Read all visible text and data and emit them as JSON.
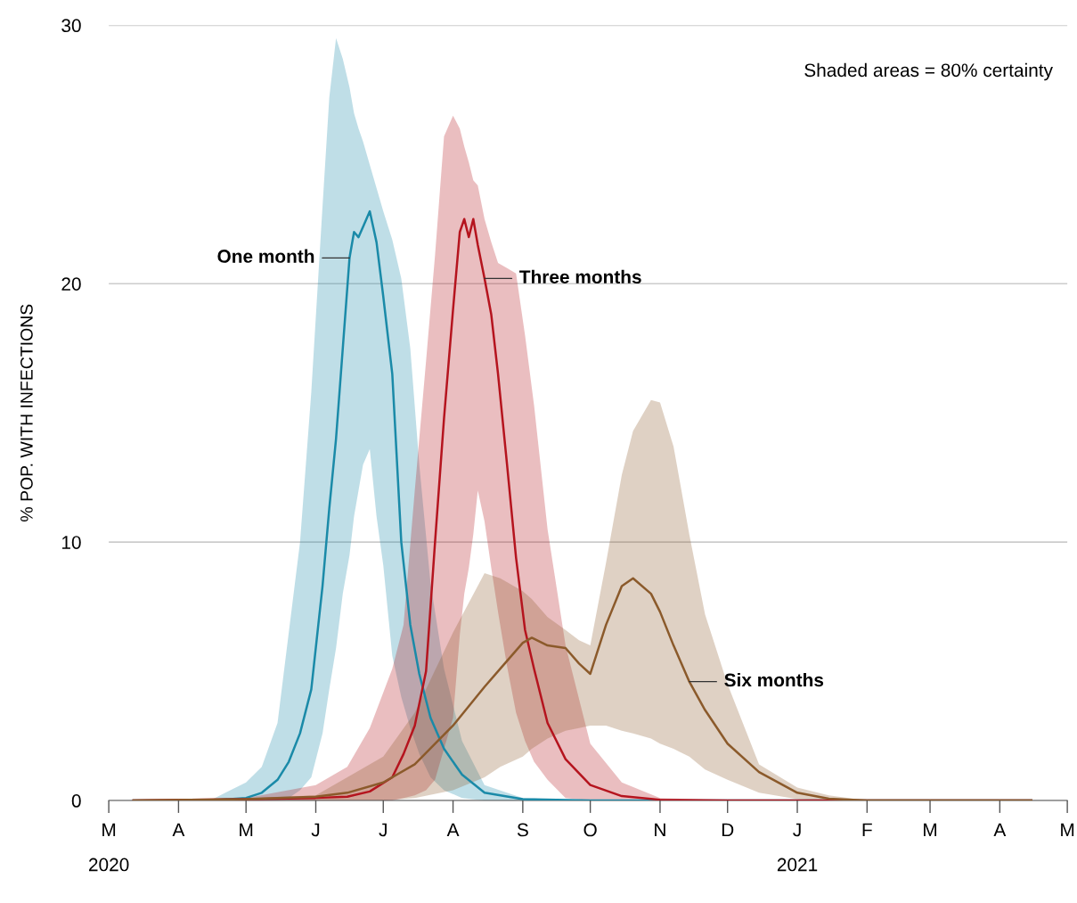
{
  "chart_data": {
    "type": "line",
    "ylabel": "% POP. WITH INFECTIONS",
    "annotations": [
      "Shaded areas = 80% certainty"
    ],
    "xlim": [
      "2020-03-01",
      "2021-05-01"
    ],
    "xticks": [
      {
        "value": "2020-03-01",
        "label": "M\n2020"
      },
      {
        "value": "2020-04-01",
        "label": "A"
      },
      {
        "value": "2020-05-01",
        "label": "M"
      },
      {
        "value": "2020-06-01",
        "label": "J"
      },
      {
        "value": "2020-07-01",
        "label": "J"
      },
      {
        "value": "2020-08-01",
        "label": "A"
      },
      {
        "value": "2020-09-01",
        "label": "S"
      },
      {
        "value": "2020-10-01",
        "label": "O"
      },
      {
        "value": "2020-11-01",
        "label": "N"
      },
      {
        "value": "2020-12-01",
        "label": "D"
      },
      {
        "value": "2021-01-01",
        "label": "J\n2021"
      },
      {
        "value": "2021-02-01",
        "label": "F"
      },
      {
        "value": "2021-03-01",
        "label": "M"
      },
      {
        "value": "2021-04-01",
        "label": "A"
      },
      {
        "value": "2021-05-01",
        "label": "M"
      }
    ],
    "ylim": [
      0,
      30
    ],
    "yticks": [
      0,
      10,
      20,
      30
    ],
    "grid": "y",
    "legend": false,
    "series": [
      {
        "name": "One month",
        "color": "#1a8aa8",
        "x": [
          "2020-03-12",
          "2020-04-15",
          "2020-05-01",
          "2020-05-08",
          "2020-05-15",
          "2020-05-20",
          "2020-05-25",
          "2020-05-30",
          "2020-06-04",
          "2020-06-07",
          "2020-06-10",
          "2020-06-13",
          "2020-06-16",
          "2020-06-18",
          "2020-06-20",
          "2020-06-22",
          "2020-06-25",
          "2020-06-28",
          "2020-07-01",
          "2020-07-05",
          "2020-07-09",
          "2020-07-13",
          "2020-07-17",
          "2020-07-22",
          "2020-07-28",
          "2020-08-05",
          "2020-08-15",
          "2020-09-01",
          "2020-10-01",
          "2021-04-15"
        ],
        "values": [
          0,
          0,
          0.1,
          0.3,
          0.8,
          1.5,
          2.6,
          4.3,
          8.3,
          11.3,
          14,
          17.5,
          21,
          22,
          21.8,
          22.2,
          22.8,
          21.6,
          19.5,
          16.5,
          10,
          6.8,
          4.9,
          3.2,
          2,
          1,
          0.3,
          0.05,
          0,
          0
        ],
        "lower": [
          0,
          0,
          0,
          0,
          0,
          0.1,
          0.4,
          0.9,
          2.6,
          4.3,
          5.9,
          8,
          9.5,
          11,
          12,
          13,
          13.6,
          11,
          9.1,
          5.6,
          4,
          2.8,
          1.8,
          0.9,
          0.4,
          0.1,
          0,
          0,
          0,
          0
        ],
        "upper": [
          0,
          0,
          0.7,
          1.3,
          3,
          6.5,
          10,
          15.8,
          23,
          27.2,
          29.5,
          28.7,
          27.6,
          26.6,
          26,
          25.5,
          24.6,
          23.7,
          22.8,
          21.7,
          20.2,
          17.5,
          13,
          8.4,
          5.1,
          2.3,
          0.6,
          0.1,
          0,
          0
        ]
      },
      {
        "name": "Three months",
        "color": "#b5141e",
        "x": [
          "2020-03-12",
          "2020-05-01",
          "2020-06-01",
          "2020-06-15",
          "2020-06-25",
          "2020-07-05",
          "2020-07-10",
          "2020-07-15",
          "2020-07-20",
          "2020-07-24",
          "2020-07-28",
          "2020-08-01",
          "2020-08-04",
          "2020-08-06",
          "2020-08-08",
          "2020-08-10",
          "2020-08-12",
          "2020-08-15",
          "2020-08-18",
          "2020-08-21",
          "2020-08-25",
          "2020-08-29",
          "2020-09-02",
          "2020-09-06",
          "2020-09-12",
          "2020-09-20",
          "2020-10-01",
          "2020-10-15",
          "2020-11-01",
          "2020-12-01",
          "2021-04-15"
        ],
        "values": [
          0,
          0.05,
          0.1,
          0.15,
          0.35,
          0.9,
          1.8,
          2.9,
          5,
          10,
          14.8,
          19,
          22,
          22.5,
          21.8,
          22.5,
          21.5,
          20.2,
          18.8,
          16.5,
          13,
          9.4,
          6.6,
          5.1,
          3,
          1.6,
          0.6,
          0.17,
          0.03,
          0,
          0
        ],
        "lower": [
          0,
          0,
          0,
          0,
          0,
          0,
          0.1,
          0.2,
          0.4,
          0.8,
          2,
          3.2,
          6.4,
          8,
          9,
          10.3,
          12,
          10.8,
          9,
          7.3,
          5.2,
          3.4,
          2.3,
          1.5,
          0.8,
          0.1,
          0,
          0,
          0,
          0,
          0
        ],
        "upper": [
          0,
          0.1,
          0.6,
          1.3,
          2.8,
          5.1,
          6.8,
          12,
          17,
          21.1,
          25.7,
          26.5,
          26,
          25.3,
          24.7,
          24,
          23.8,
          22.5,
          21.6,
          20.8,
          20.6,
          20.4,
          18,
          15.3,
          10.5,
          6,
          2.2,
          0.7,
          0.1,
          0,
          0
        ]
      },
      {
        "name": "Six months",
        "color": "#8b5a2b",
        "x": [
          "2020-03-12",
          "2020-05-01",
          "2020-06-01",
          "2020-06-15",
          "2020-07-01",
          "2020-07-15",
          "2020-08-01",
          "2020-08-15",
          "2020-08-22",
          "2020-09-01",
          "2020-09-05",
          "2020-09-12",
          "2020-09-20",
          "2020-09-26",
          "2020-10-01",
          "2020-10-08",
          "2020-10-15",
          "2020-10-20",
          "2020-10-28",
          "2020-11-01",
          "2020-11-07",
          "2020-11-14",
          "2020-11-21",
          "2020-12-01",
          "2020-12-15",
          "2021-01-01",
          "2021-01-15",
          "2021-02-01",
          "2021-04-15"
        ],
        "values": [
          0,
          0.05,
          0.15,
          0.3,
          0.7,
          1.4,
          2.9,
          4.4,
          5.1,
          6.1,
          6.3,
          6,
          5.9,
          5.3,
          4.9,
          6.8,
          8.3,
          8.6,
          8,
          7.3,
          6,
          4.6,
          3.5,
          2.2,
          1.1,
          0.3,
          0.07,
          0,
          0
        ],
        "lower": [
          0,
          0,
          0,
          0,
          0,
          0.1,
          0.4,
          0.9,
          1.3,
          1.7,
          2,
          2.4,
          2.7,
          2.8,
          2.9,
          2.9,
          2.7,
          2.6,
          2.4,
          2.2,
          2,
          1.7,
          1.2,
          0.8,
          0.3,
          0.05,
          0,
          0,
          0
        ],
        "upper": [
          0,
          0.1,
          0.2,
          0.9,
          1.7,
          3.4,
          6.5,
          8.8,
          8.6,
          8.1,
          7.8,
          7.1,
          6.6,
          6.2,
          6,
          9.2,
          12.6,
          14.3,
          15.5,
          15.4,
          13.7,
          10.3,
          7.2,
          4.5,
          1.4,
          0.5,
          0.2,
          0,
          0
        ]
      }
    ]
  }
}
